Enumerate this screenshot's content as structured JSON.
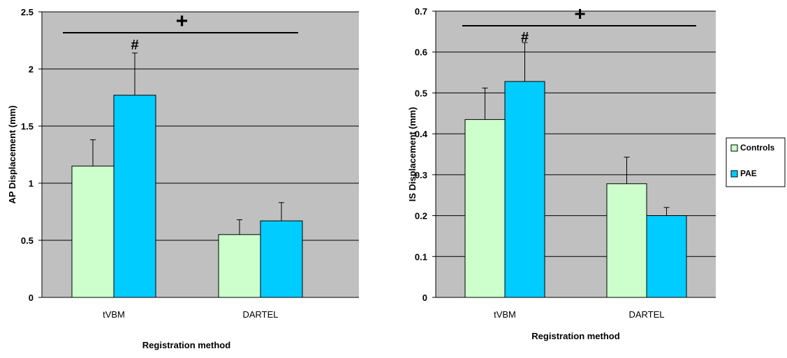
{
  "colors": {
    "plot_bg": "#c0c0c0",
    "grid": "#000000",
    "controls": "#ccffcc",
    "pae": "#00ccff",
    "bar_edge": "#000000"
  },
  "legend": {
    "items": [
      {
        "label": "Controls",
        "color": "#ccffcc"
      },
      {
        "label": "PAE",
        "color": "#00ccff"
      }
    ]
  },
  "chart_data": [
    {
      "type": "bar",
      "categories": [
        "tVBM",
        "DARTEL"
      ],
      "series": [
        {
          "name": "Controls",
          "values": [
            1.15,
            0.55
          ],
          "errors": [
            0.23,
            0.13
          ]
        },
        {
          "name": "PAE",
          "values": [
            1.77,
            0.67
          ],
          "errors": [
            0.37,
            0.16
          ]
        }
      ],
      "xlabel": "Registration method",
      "ylabel": "AP Displacement (mm)",
      "ylim": [
        0,
        2.5
      ],
      "yticks": [
        "0",
        "0.5",
        "1",
        "1.5",
        "2",
        "2.5"
      ],
      "grid": true,
      "annotations": [
        {
          "text": "+",
          "meaning": "bracket spanning both methods"
        },
        {
          "text": "#",
          "meaning": "above tVBM PAE bar"
        }
      ]
    },
    {
      "type": "bar",
      "categories": [
        "tVBM",
        "DARTEL"
      ],
      "series": [
        {
          "name": "Controls",
          "values": [
            0.435,
            0.278
          ],
          "errors": [
            0.077,
            0.065
          ]
        },
        {
          "name": "PAE",
          "values": [
            0.528,
            0.2
          ],
          "errors": [
            0.095,
            0.02
          ]
        }
      ],
      "xlabel": "Registration method",
      "ylabel": "IS Displacement (mm)",
      "ylim": [
        0,
        0.7
      ],
      "yticks": [
        "0",
        "0.1",
        "0.2",
        "0.3",
        "0.4",
        "0.5",
        "0.6",
        "0.7"
      ],
      "grid": true,
      "annotations": [
        {
          "text": "+",
          "meaning": "bracket spanning both methods"
        },
        {
          "text": "#",
          "meaning": "above tVBM PAE bar"
        }
      ]
    }
  ]
}
